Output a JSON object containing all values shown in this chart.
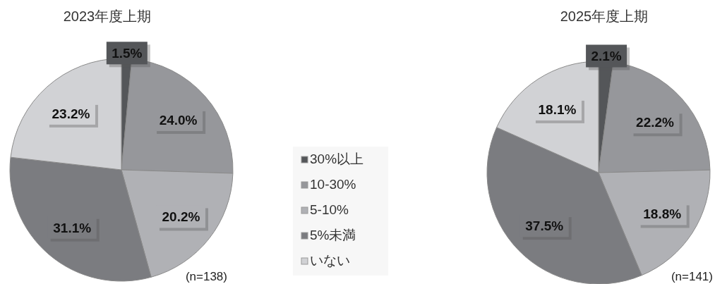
{
  "chart_data": [
    {
      "type": "pie",
      "title": "2023年度上期",
      "categories": [
        "30%以上",
        "10-30%",
        "5-10%",
        "5%未満",
        "いない"
      ],
      "values": [
        1.5,
        24.0,
        20.2,
        31.1,
        23.2
      ],
      "value_labels": [
        "1.5%",
        "24.0%",
        "20.2%",
        "31.1%",
        "23.2%"
      ],
      "colors": [
        "#545659",
        "#96979b",
        "#b0b1b5",
        "#7b7c80",
        "#d1d2d5"
      ],
      "legend": "right",
      "annotations": [
        "(n=138)"
      ]
    },
    {
      "type": "pie",
      "title": "2025年度上期",
      "categories": [
        null,
        null,
        null,
        null,
        null
      ],
      "values": [
        2.1,
        22.2,
        18.8,
        37.5,
        18.1
      ],
      "value_labels": [
        "2.1%",
        "22.2%",
        "18.8%",
        "37.5%",
        "18.1%"
      ],
      "colors": [
        "#545659",
        "#96979b",
        "#b0b1b5",
        "#7b7c80",
        "#d1d2d5"
      ],
      "annotations": [
        "(n=141)"
      ]
    }
  ]
}
